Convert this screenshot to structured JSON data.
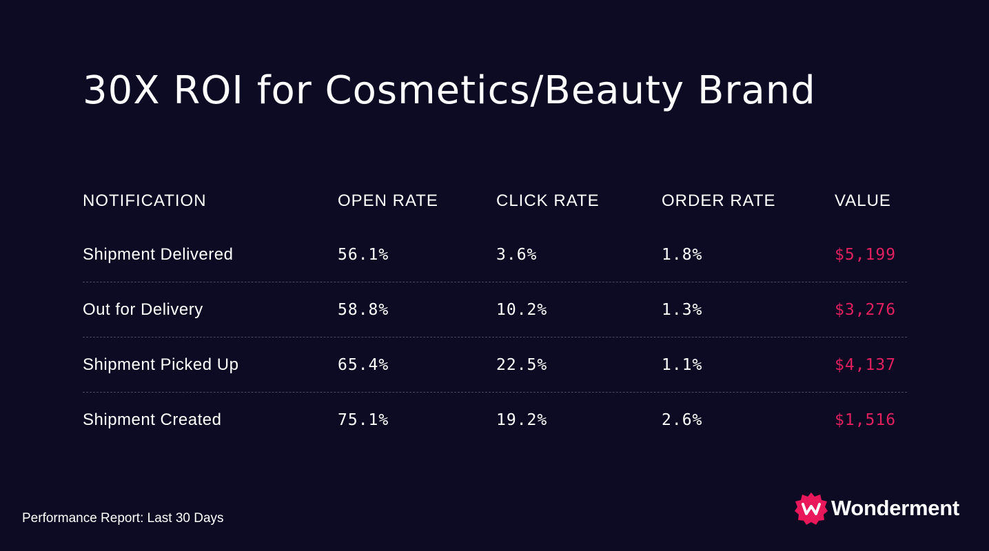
{
  "title": "30X ROI for Cosmetics/Beauty Brand",
  "table": {
    "headers": [
      "NOTIFICATION",
      "OPEN RATE",
      "CLICK RATE",
      "ORDER RATE",
      "VALUE"
    ],
    "rows": [
      {
        "notification": "Shipment Delivered",
        "open_rate": "56.1%",
        "click_rate": "3.6%",
        "order_rate": "1.8%",
        "value": "$5,199"
      },
      {
        "notification": "Out for Delivery",
        "open_rate": "58.8%",
        "click_rate": "10.2%",
        "order_rate": "1.3%",
        "value": "$3,276"
      },
      {
        "notification": "Shipment Picked Up",
        "open_rate": "65.4%",
        "click_rate": "22.5%",
        "order_rate": "1.1%",
        "value": "$4,137"
      },
      {
        "notification": "Shipment Created",
        "open_rate": "75.1%",
        "click_rate": "19.2%",
        "order_rate": "2.6%",
        "value": "$1,516"
      }
    ]
  },
  "footer": {
    "note": "Performance Report: Last 30 Days"
  },
  "brand": {
    "name": "Wonderment",
    "logo_icon": "wonderment-logo-icon"
  },
  "colors": {
    "background": "#0d0b24",
    "text": "#ffffff",
    "value_accent": "#e0205f",
    "brand_accent": "#e8185a",
    "row_divider": "#4a4862"
  }
}
